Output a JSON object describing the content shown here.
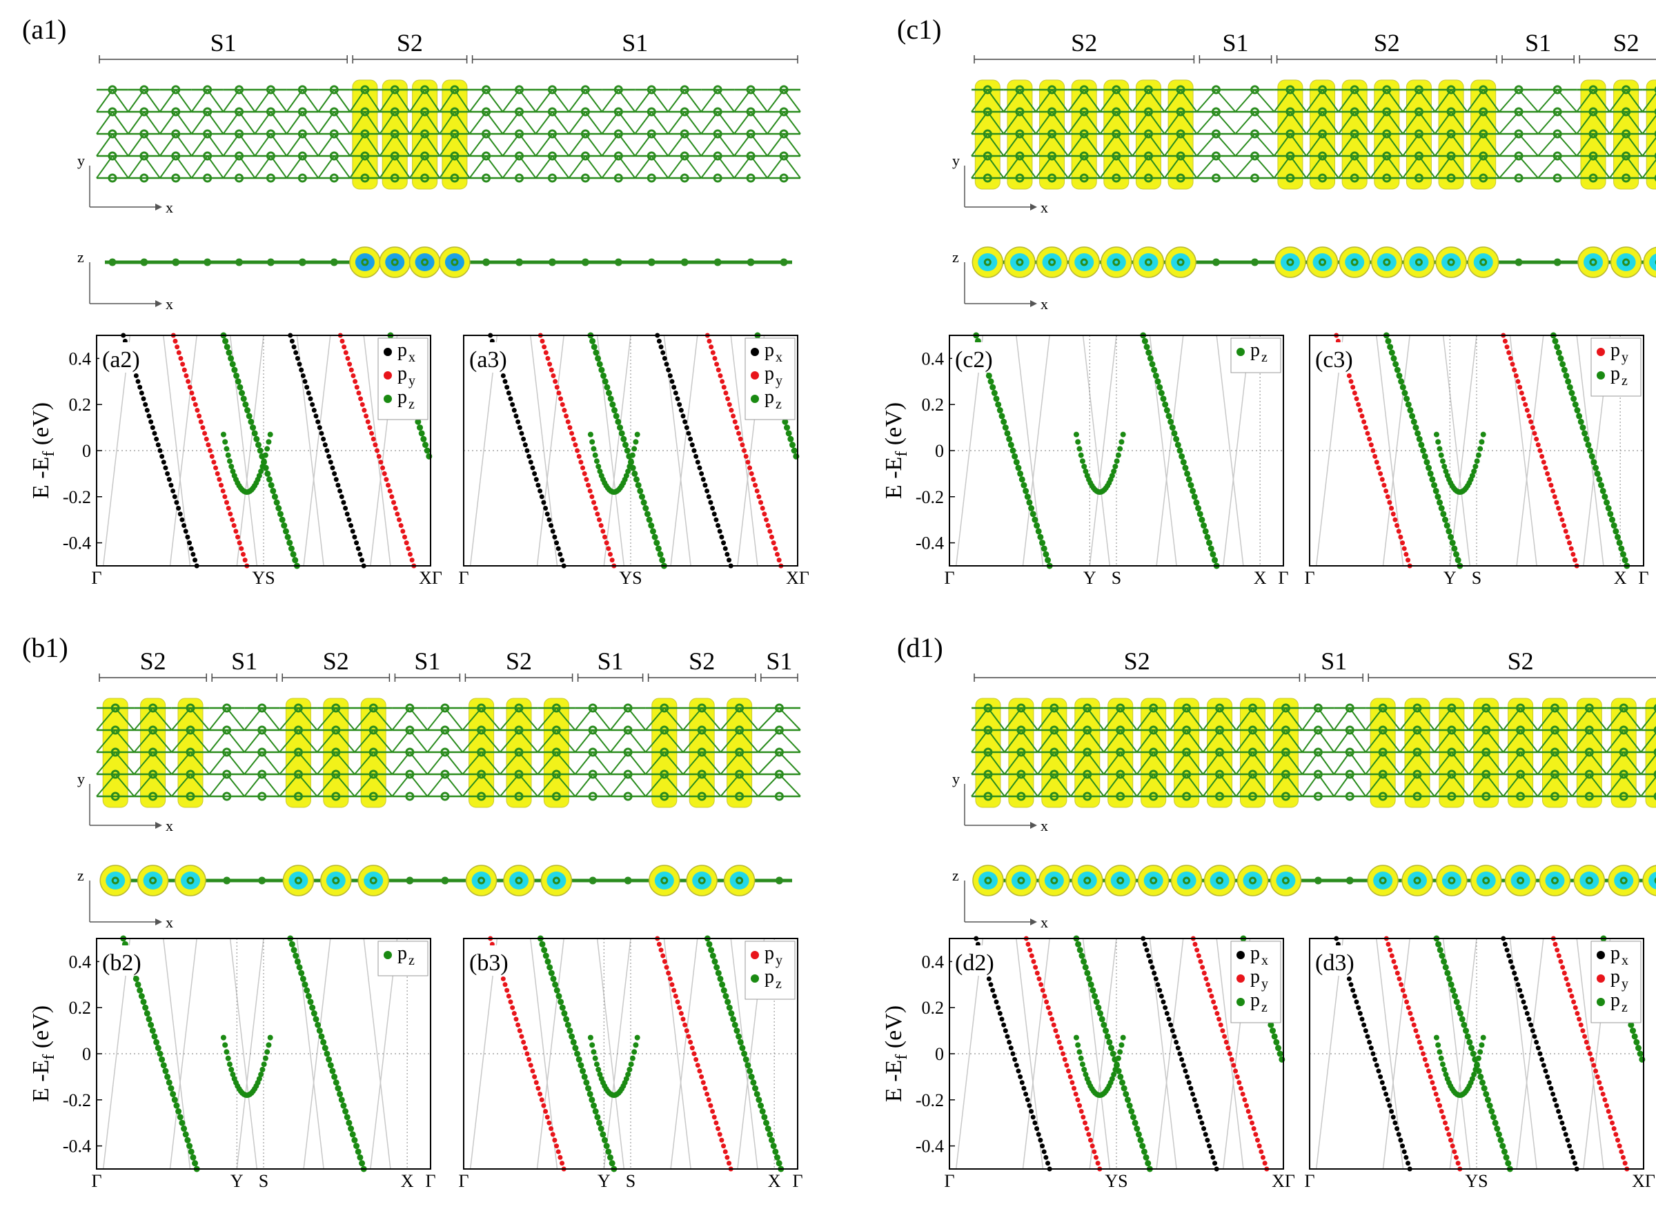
{
  "figure": {
    "axis_label_y": "E -E",
    "axis_label_sub": "f",
    "axis_label_unit": " (eV)",
    "axis_x": "x",
    "axis_y": "y",
    "axis_z": "z",
    "orb_prefix": "p",
    "ytick_labels": [
      "0.4",
      "0.2",
      "0",
      "-0.2",
      "-0.4"
    ],
    "colors": {
      "yellow": "#f2f21a",
      "green": "#2a8c1e",
      "blue": "#1aa0e6",
      "cyan": "#22d8e8",
      "px": "#000000",
      "py": "#e8141a",
      "pz": "#1a8a12",
      "grid": "#c8c8c8"
    }
  },
  "panels": [
    {
      "label": "(a1)",
      "regions": [
        "S1",
        "S2",
        "S1"
      ],
      "fr": [
        0.36,
        0.17,
        0.47
      ]
    },
    {
      "label": "(b1)",
      "regions": [
        "S2",
        "S1",
        "S2",
        "S1",
        "S2",
        "S1",
        "S2",
        "S1"
      ],
      "fr": [
        0.16,
        0.1,
        0.16,
        0.1,
        0.16,
        0.1,
        0.16,
        0.06
      ]
    },
    {
      "label": "(c1)",
      "regions": [
        "S2",
        "S1",
        "S2",
        "S1",
        "S2"
      ],
      "fr": [
        0.32,
        0.11,
        0.32,
        0.11,
        0.14
      ]
    },
    {
      "label": "(d1)",
      "regions": [
        "S2",
        "S1",
        "S2"
      ],
      "fr": [
        0.47,
        0.09,
        0.44
      ]
    }
  ],
  "bands": [
    {
      "label": "(a2)",
      "kticks": [
        "Γ",
        "YS",
        "XΓ"
      ],
      "legend": [
        "x",
        "y",
        "z"
      ]
    },
    {
      "label": "(a3)",
      "kticks": [
        "Γ",
        "YS",
        "XΓ"
      ],
      "legend": [
        "x",
        "y",
        "z"
      ]
    },
    {
      "label": "(b2)",
      "kticks": [
        "Γ",
        "Y",
        "S",
        "X",
        "Γ"
      ],
      "legend": [
        "z"
      ]
    },
    {
      "label": "(b3)",
      "kticks": [
        "Γ",
        "Y",
        "S",
        "X",
        "Γ"
      ],
      "legend": [
        "y",
        "z"
      ]
    },
    {
      "label": "(c2)",
      "kticks": [
        "Γ",
        "Y",
        "S",
        "X",
        "Γ"
      ],
      "legend": [
        "z"
      ]
    },
    {
      "label": "(c3)",
      "kticks": [
        "Γ",
        "Y",
        "S",
        "X",
        "Γ"
      ],
      "legend": [
        "y",
        "z"
      ]
    },
    {
      "label": "(d2)",
      "kticks": [
        "Γ",
        "YS",
        "XΓ"
      ],
      "legend": [
        "x",
        "y",
        "z"
      ]
    },
    {
      "label": "(d3)",
      "kticks": [
        "Γ",
        "YS",
        "XΓ"
      ],
      "legend": [
        "x",
        "y",
        "z"
      ]
    }
  ]
}
